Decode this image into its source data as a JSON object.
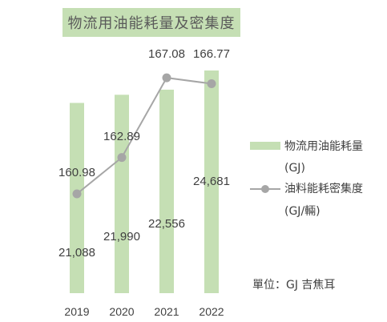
{
  "chart_data": {
    "type": "bar",
    "title": "物流用油能耗量及密集度",
    "categories": [
      "2019",
      "2020",
      "2021",
      "2022"
    ],
    "series": [
      {
        "name": "物流用油能耗量",
        "name_unit": "(GJ)",
        "kind": "bar",
        "values": [
          21088,
          21990,
          22556,
          24681
        ],
        "labels": [
          "21,088",
          "21,990",
          "22,556",
          "24,681"
        ],
        "color": "#c5dfb4"
      },
      {
        "name": "油料能耗密集度",
        "name_unit": "(GJ/輛)",
        "kind": "line",
        "values": [
          160.98,
          162.89,
          167.08,
          166.77
        ],
        "labels": [
          "160.98",
          "162.89",
          "167.08",
          "166.77"
        ],
        "color": "#a6a6a6"
      }
    ],
    "unit_note": "單位：GJ 吉焦耳",
    "legend_position": "right",
    "grid": false
  }
}
